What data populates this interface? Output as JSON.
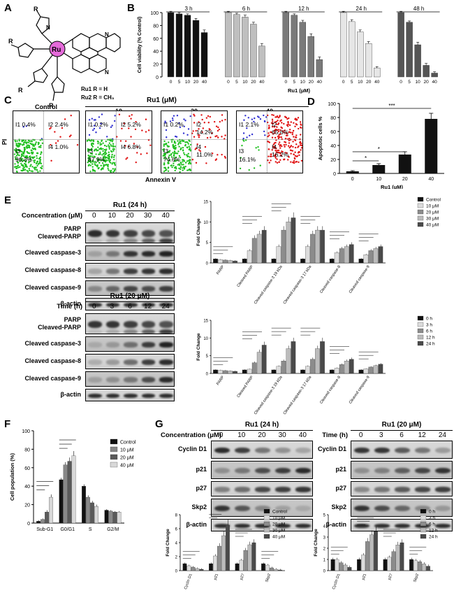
{
  "panels": {
    "A": "A",
    "B": "B",
    "C": "C",
    "D": "D",
    "E": "E",
    "F": "F",
    "G": "G"
  },
  "chem": {
    "metal": "Ru",
    "r": "R",
    "ru1": "Ru1  R = H",
    "ru2": "Ru2  R = CH₃",
    "n": "N"
  },
  "panelB": {
    "ylabel": "Cell viability (% Control)",
    "xlabel": "Ru1 (μM)",
    "yticks": [
      "0",
      "20",
      "40",
      "60",
      "80",
      "100"
    ],
    "doses": [
      "0",
      "5",
      "10",
      "20",
      "40"
    ],
    "groups": [
      {
        "label": "3 h",
        "color": "#111111",
        "values": [
          100,
          98,
          96,
          88,
          69
        ],
        "err": [
          2,
          2,
          2,
          3,
          4
        ]
      },
      {
        "label": "6 h",
        "color": "#bfbfbf",
        "values": [
          100,
          97,
          93,
          82,
          48
        ],
        "err": [
          2,
          2,
          3,
          3,
          4
        ]
      },
      {
        "label": "12 h",
        "color": "#7a7a7a",
        "values": [
          100,
          96,
          85,
          63,
          27
        ],
        "err": [
          2,
          2,
          3,
          4,
          4
        ]
      },
      {
        "label": "24 h",
        "color": "#e6e6e6",
        "values": [
          100,
          86,
          70,
          52,
          14
        ],
        "err": [
          2,
          3,
          3,
          3,
          2
        ]
      },
      {
        "label": "48 h",
        "color": "#555555",
        "values": [
          100,
          85,
          50,
          18,
          6
        ],
        "err": [
          2,
          2,
          4,
          3,
          2
        ]
      }
    ]
  },
  "panelC": {
    "title": "Ru1 (μM)",
    "ylabel": "PI",
    "xlabel": "Annexin V",
    "plots": [
      {
        "header": "Control",
        "q1": "I1 0.4%",
        "q2": "I2 2.4%",
        "q3": "I3",
        "q3v": "96.3%",
        "q4": "I4 1.0%"
      },
      {
        "header": "10",
        "q1": "I1 0.2%",
        "q2": "I2 5.2%",
        "q3": "I3",
        "q3v": "87.9%",
        "q4": "I4 6.8%"
      },
      {
        "header": "20",
        "q1": "I1 0.2%",
        "q2": "I2",
        "q2v": "14.2%",
        "q3": "I3",
        "q3v": "74.6%",
        "q4": "I4",
        "q4v": "11.0%"
      },
      {
        "header": "40",
        "q1": "I1 2.1%",
        "q2": "I2",
        "q2v": "65.6%",
        "q3": "I3",
        "q3v": "16.1%",
        "q4": "I4",
        "q4v": "16.2%"
      }
    ]
  },
  "panelD": {
    "ylabel": "Apoptotic cells %",
    "xlabel": "Ru1 (μM)",
    "yticks": [
      "0",
      "20",
      "40",
      "60",
      "80",
      "100"
    ],
    "categories": [
      "0",
      "10",
      "20",
      "40"
    ],
    "values": [
      3,
      12,
      27,
      78
    ],
    "err": [
      1,
      2,
      4,
      8
    ],
    "sig": [
      "*",
      "*",
      "***"
    ]
  },
  "panelE": {
    "top": {
      "title": "Ru1 (24 h)",
      "axis": "Concentration (μM)",
      "cols": [
        "0",
        "10",
        "20",
        "30",
        "40"
      ],
      "rows": [
        "PARP\nCleaved-PARP",
        "Cleaved caspase-3",
        "Cleaved caspase-8",
        "Cleaved caspase-9",
        "β-actin"
      ]
    },
    "bottom": {
      "title": "Ru1 (20 μM)",
      "axis": "Time (h)",
      "cols": [
        "0",
        "3",
        "6",
        "12",
        "24"
      ],
      "rows": [
        "PARP\nCleaved-PARP",
        "Cleaved caspase-3",
        "Cleaved caspase-8",
        "Cleaved caspase-9",
        "β-actin"
      ]
    },
    "chart1": {
      "ylabel": "Fold Change",
      "yticks": [
        "0",
        "5",
        "10",
        "15"
      ],
      "categories": [
        "PARP",
        "Cleaved PARP",
        "Cleaved caspase-3 19 kDa",
        "Cleaved caspase-3 17 kDa",
        "Cleaved caspase-8",
        "Cleaved caspase-9"
      ],
      "legend": [
        "Control",
        "10 μM",
        "20 μM",
        "30 μM",
        "40 μM"
      ],
      "values": [
        [
          1,
          0.8,
          0.7,
          0.6,
          0.5
        ],
        [
          1,
          3,
          6,
          7,
          8
        ],
        [
          1,
          4,
          8,
          10,
          11
        ],
        [
          1,
          4,
          7,
          8,
          8
        ],
        [
          1,
          2.5,
          3.5,
          4,
          4.5
        ],
        [
          1,
          2,
          3,
          3.5,
          4
        ]
      ]
    },
    "chart2": {
      "ylabel": "Fold Change",
      "yticks": [
        "0",
        "5",
        "10",
        "15"
      ],
      "categories": [
        "PARP",
        "Cleaved PARP",
        "Cleaved caspase-3 19 kDa",
        "Cleaved caspase-3 17 kDa",
        "Cleaved caspase-8",
        "Cleaved caspase-9"
      ],
      "legend": [
        "0 h",
        "3 h",
        "6 h",
        "12 h",
        "24 h"
      ],
      "values": [
        [
          1,
          0.9,
          0.8,
          0.7,
          0.6
        ],
        [
          1,
          1.2,
          3,
          6,
          8
        ],
        [
          1,
          2,
          3.5,
          7,
          9
        ],
        [
          1,
          2,
          4,
          7,
          9
        ],
        [
          1,
          1.5,
          2.5,
          3.5,
          4
        ],
        [
          1,
          1.3,
          1.8,
          2.2,
          2.6
        ]
      ]
    }
  },
  "panelF": {
    "ylabel": "Cell population (%)",
    "yticks": [
      "0",
      "20",
      "40",
      "60",
      "80",
      "100"
    ],
    "categories": [
      "Sub-G1",
      "G0/G1",
      "S",
      "G2/M"
    ],
    "legend": [
      "Control",
      "10 μM",
      "20 μM",
      "40 μM"
    ],
    "values": [
      [
        2,
        4,
        12,
        28
      ],
      [
        47,
        63,
        67,
        73
      ],
      [
        40,
        28,
        22,
        18
      ],
      [
        14,
        13,
        12,
        12
      ]
    ],
    "err": [
      [
        1,
        1,
        2,
        3
      ],
      [
        2,
        3,
        4,
        5
      ],
      [
        2,
        2,
        2,
        2
      ],
      [
        1,
        1,
        1,
        1
      ]
    ]
  },
  "panelG": {
    "left": {
      "title": "Ru1 (24 h)",
      "axis": "Concentration (μM)",
      "cols": [
        "0",
        "10",
        "20",
        "30",
        "40"
      ],
      "rows": [
        "Cyclin D1",
        "p21",
        "p27",
        "Skp2",
        "β-actin"
      ]
    },
    "right": {
      "title": "Ru1 (20 μM)",
      "axis": "Time (h)",
      "cols": [
        "0",
        "3",
        "6",
        "12",
        "24"
      ],
      "rows": [
        "Cyclin D1",
        "p21",
        "p27",
        "Skp2",
        "β-actin"
      ]
    },
    "chart1": {
      "ylabel": "Fold Change",
      "yticks": [
        "0",
        "2",
        "4",
        "6",
        "8"
      ],
      "categories": [
        "Cyclin D1",
        "p21",
        "p27",
        "Skp2"
      ],
      "legend": [
        "Control",
        "10 μM",
        "20 μM",
        "30 μM",
        "40 μM"
      ],
      "values": [
        [
          1,
          0.7,
          0.5,
          0.3,
          0.2
        ],
        [
          1,
          2.1,
          3.5,
          5,
          6.5
        ],
        [
          1,
          1.5,
          2.9,
          3.7,
          4
        ],
        [
          1,
          0.8,
          0.4,
          0.2,
          0.1
        ]
      ]
    },
    "chart2": {
      "ylabel": "Fold Change",
      "yticks": [
        "0",
        "1",
        "2",
        "3",
        "4",
        "5"
      ],
      "categories": [
        "Cyclin D1",
        "p21",
        "p27",
        "Skp2"
      ],
      "legend": [
        "0 h",
        "3 h",
        "6 h",
        "12 h",
        "24 h"
      ],
      "values": [
        [
          1,
          1,
          0.7,
          0.5,
          0.3
        ],
        [
          1,
          1.4,
          2.6,
          3.2,
          3.5
        ],
        [
          1,
          1.2,
          1.7,
          2.3,
          2.5
        ],
        [
          1,
          0.9,
          0.8,
          0.6,
          0.4
        ]
      ]
    }
  }
}
